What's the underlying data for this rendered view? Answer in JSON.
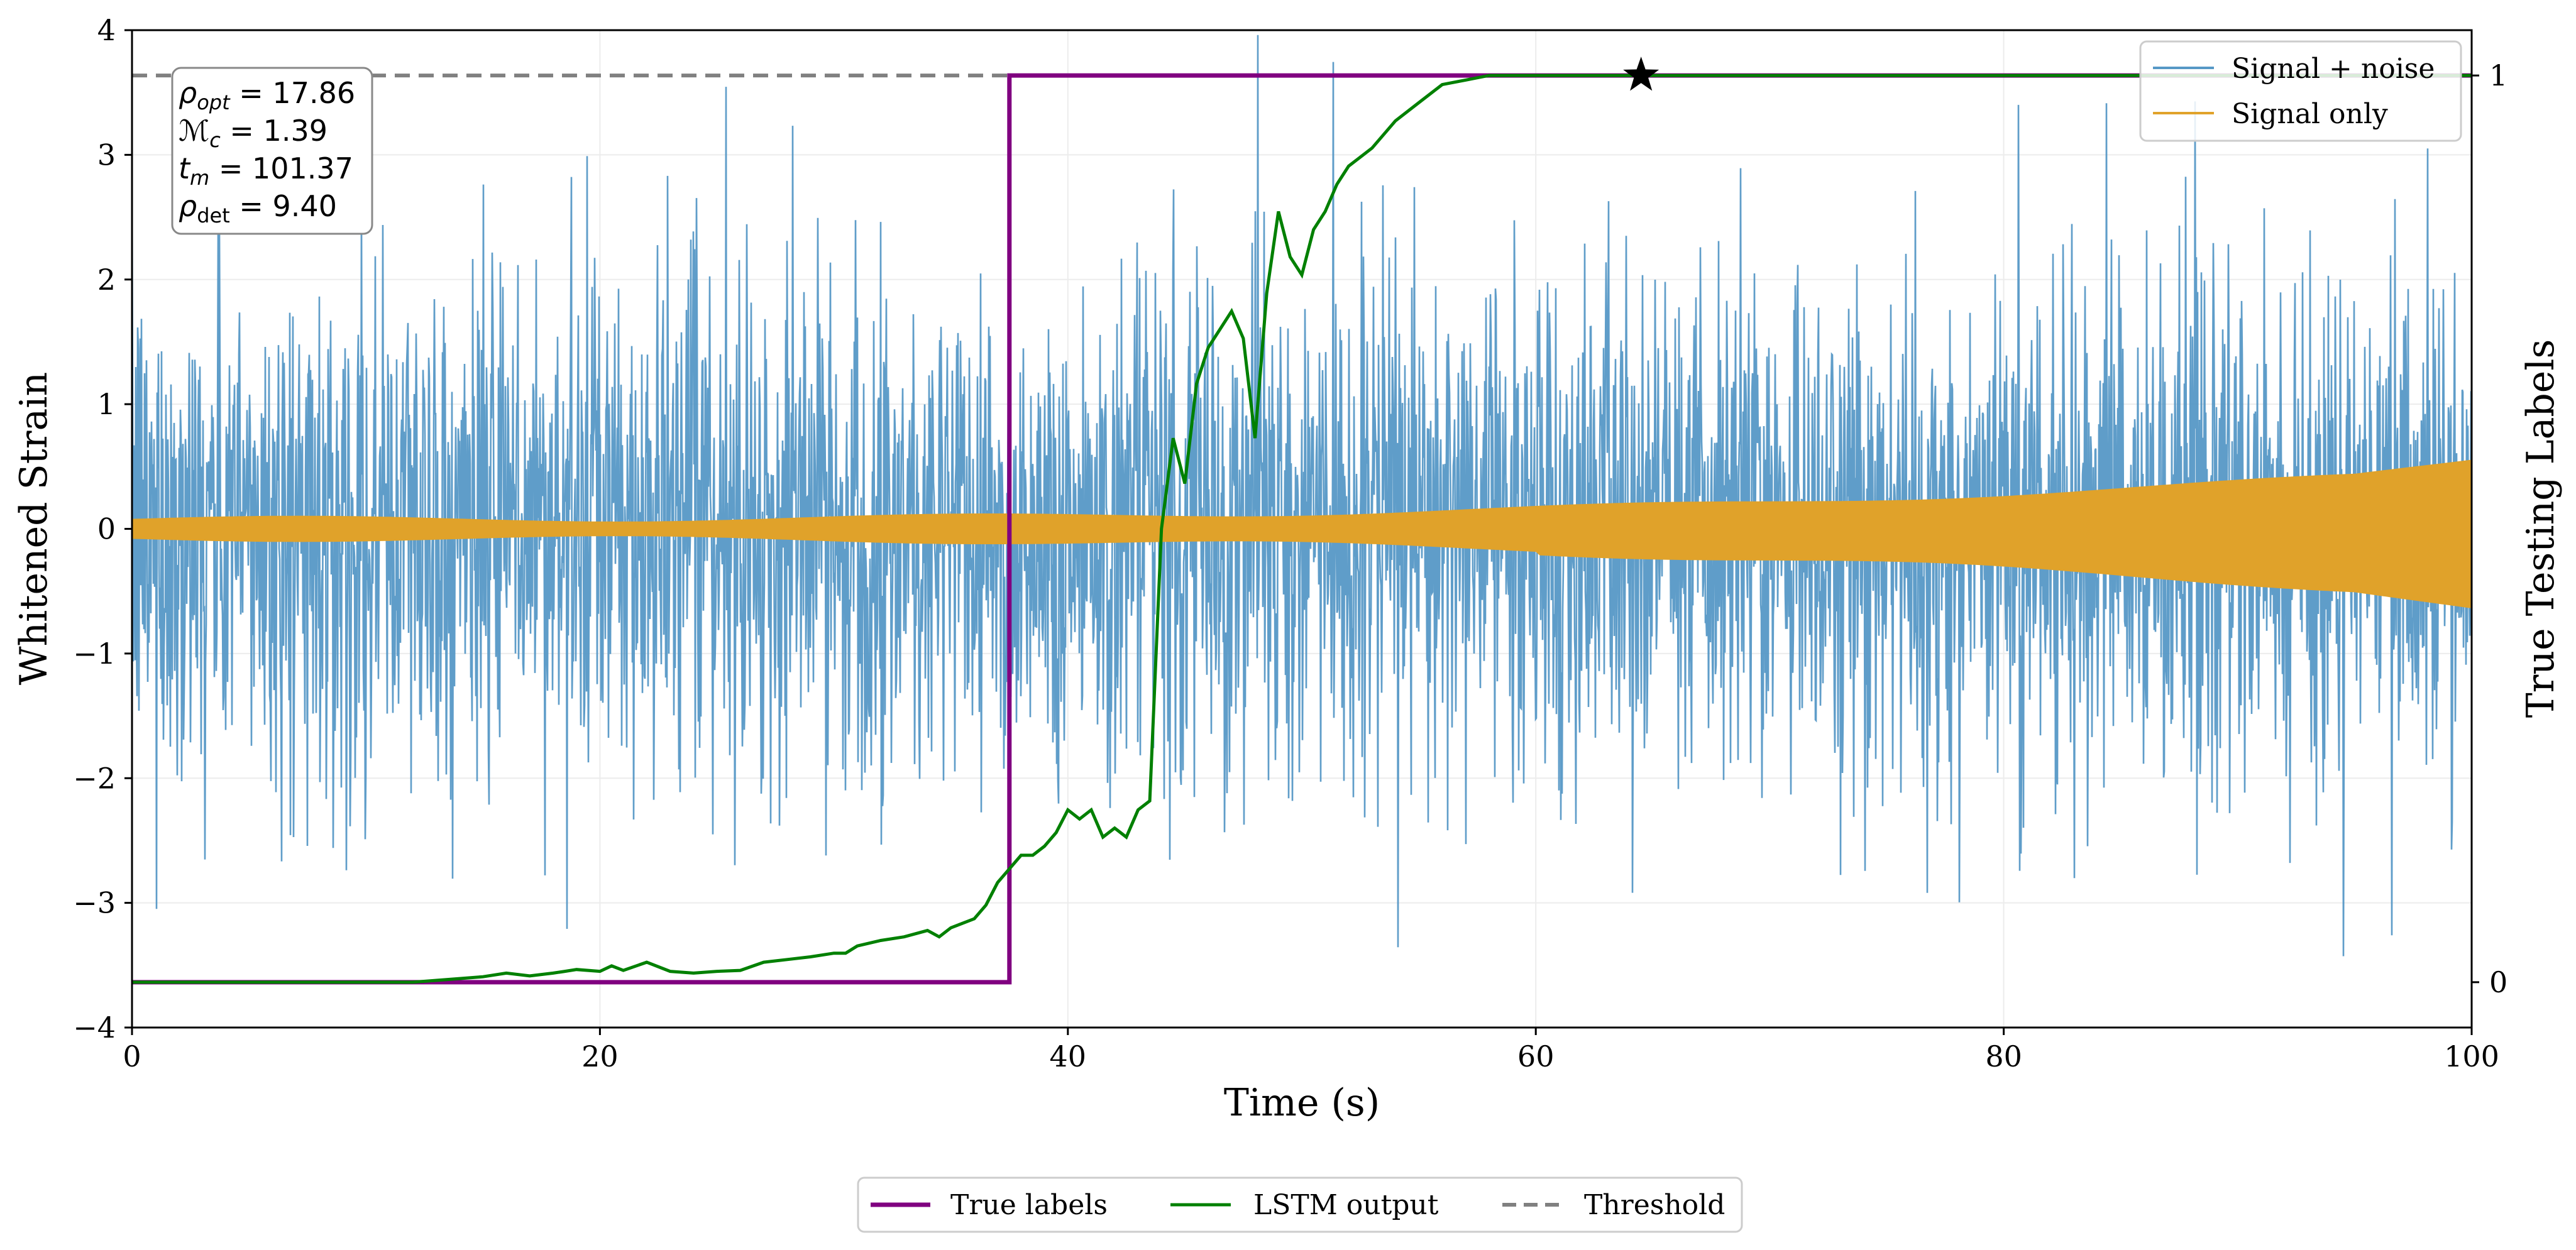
{
  "chart_data": {
    "type": "line",
    "xlabel": "Time (s)",
    "ylabel_left": "Whitened Strain",
    "ylabel_right": "True Testing Labels",
    "xlim": [
      0,
      100
    ],
    "ylim_left": [
      -4,
      4
    ],
    "ylim_right": [
      -0.05,
      1.05
    ],
    "xticks": [
      0,
      20,
      40,
      60,
      80,
      100
    ],
    "yticks_left": [
      -4,
      -3,
      -2,
      -1,
      0,
      1,
      2,
      3,
      4
    ],
    "yticks_right": [
      0,
      1
    ],
    "threshold": 1,
    "star_marker": {
      "x": 64.5,
      "y": 1
    },
    "annotation": [
      {
        "sym": "ρ",
        "sub": "opt",
        "value": "17.86"
      },
      {
        "sym": "ℳ",
        "sub": "c",
        "value": "1.39"
      },
      {
        "sym": "t",
        "sub": "m",
        "value": "101.37"
      },
      {
        "sym": "ρ",
        "sub": "det",
        "value": "9.40"
      }
    ],
    "legend_upper": [
      "Signal + noise",
      "Signal only"
    ],
    "legend_lower": [
      "True labels",
      "LSTM output",
      "Threshold"
    ],
    "colors": {
      "signal_noise": "#5698c6",
      "signal_only": "#e0a22a",
      "true_labels": "#800080",
      "lstm_output": "#008000",
      "threshold": "#808080"
    },
    "series": [
      {
        "name": "True labels",
        "axis": "right",
        "x": [
          0,
          37.5,
          37.5,
          100
        ],
        "y": [
          0,
          0,
          1,
          1
        ]
      },
      {
        "name": "LSTM output",
        "axis": "right",
        "x": [
          0,
          5,
          10,
          12,
          14,
          15,
          16,
          17,
          18,
          18.5,
          19,
          20,
          20.5,
          21,
          22,
          23,
          24,
          25,
          26,
          27,
          28,
          29,
          30,
          30.5,
          31,
          32,
          33,
          34,
          34.5,
          35,
          36,
          36.5,
          37,
          37.5,
          38,
          38.5,
          39,
          39.5,
          40,
          40.5,
          41,
          41.5,
          42,
          42.5,
          43,
          43.5,
          44,
          44.5,
          45,
          45.5,
          46,
          46.5,
          47,
          47.5,
          48,
          48.5,
          49,
          49.5,
          50,
          50.5,
          51,
          51.5,
          52,
          53,
          54,
          55,
          55.5,
          56,
          57,
          58,
          60,
          62,
          64,
          66,
          100
        ],
        "y": [
          0,
          0,
          0,
          0,
          0.004,
          0.006,
          0.01,
          0.007,
          0.01,
          0.012,
          0.014,
          0.012,
          0.018,
          0.013,
          0.022,
          0.012,
          0.01,
          0.012,
          0.013,
          0.022,
          0.025,
          0.028,
          0.032,
          0.032,
          0.04,
          0.046,
          0.05,
          0.057,
          0.05,
          0.06,
          0.07,
          0.085,
          0.11,
          0.125,
          0.14,
          0.14,
          0.15,
          0.165,
          0.19,
          0.18,
          0.19,
          0.16,
          0.17,
          0.16,
          0.19,
          0.2,
          0.5,
          0.6,
          0.55,
          0.66,
          0.7,
          0.72,
          0.74,
          0.71,
          0.6,
          0.76,
          0.85,
          0.8,
          0.78,
          0.83,
          0.85,
          0.88,
          0.9,
          0.92,
          0.95,
          0.97,
          0.98,
          0.99,
          0.995,
          1.0,
          1.0,
          1.0,
          1.0,
          1.0,
          1.0
        ]
      }
    ]
  }
}
